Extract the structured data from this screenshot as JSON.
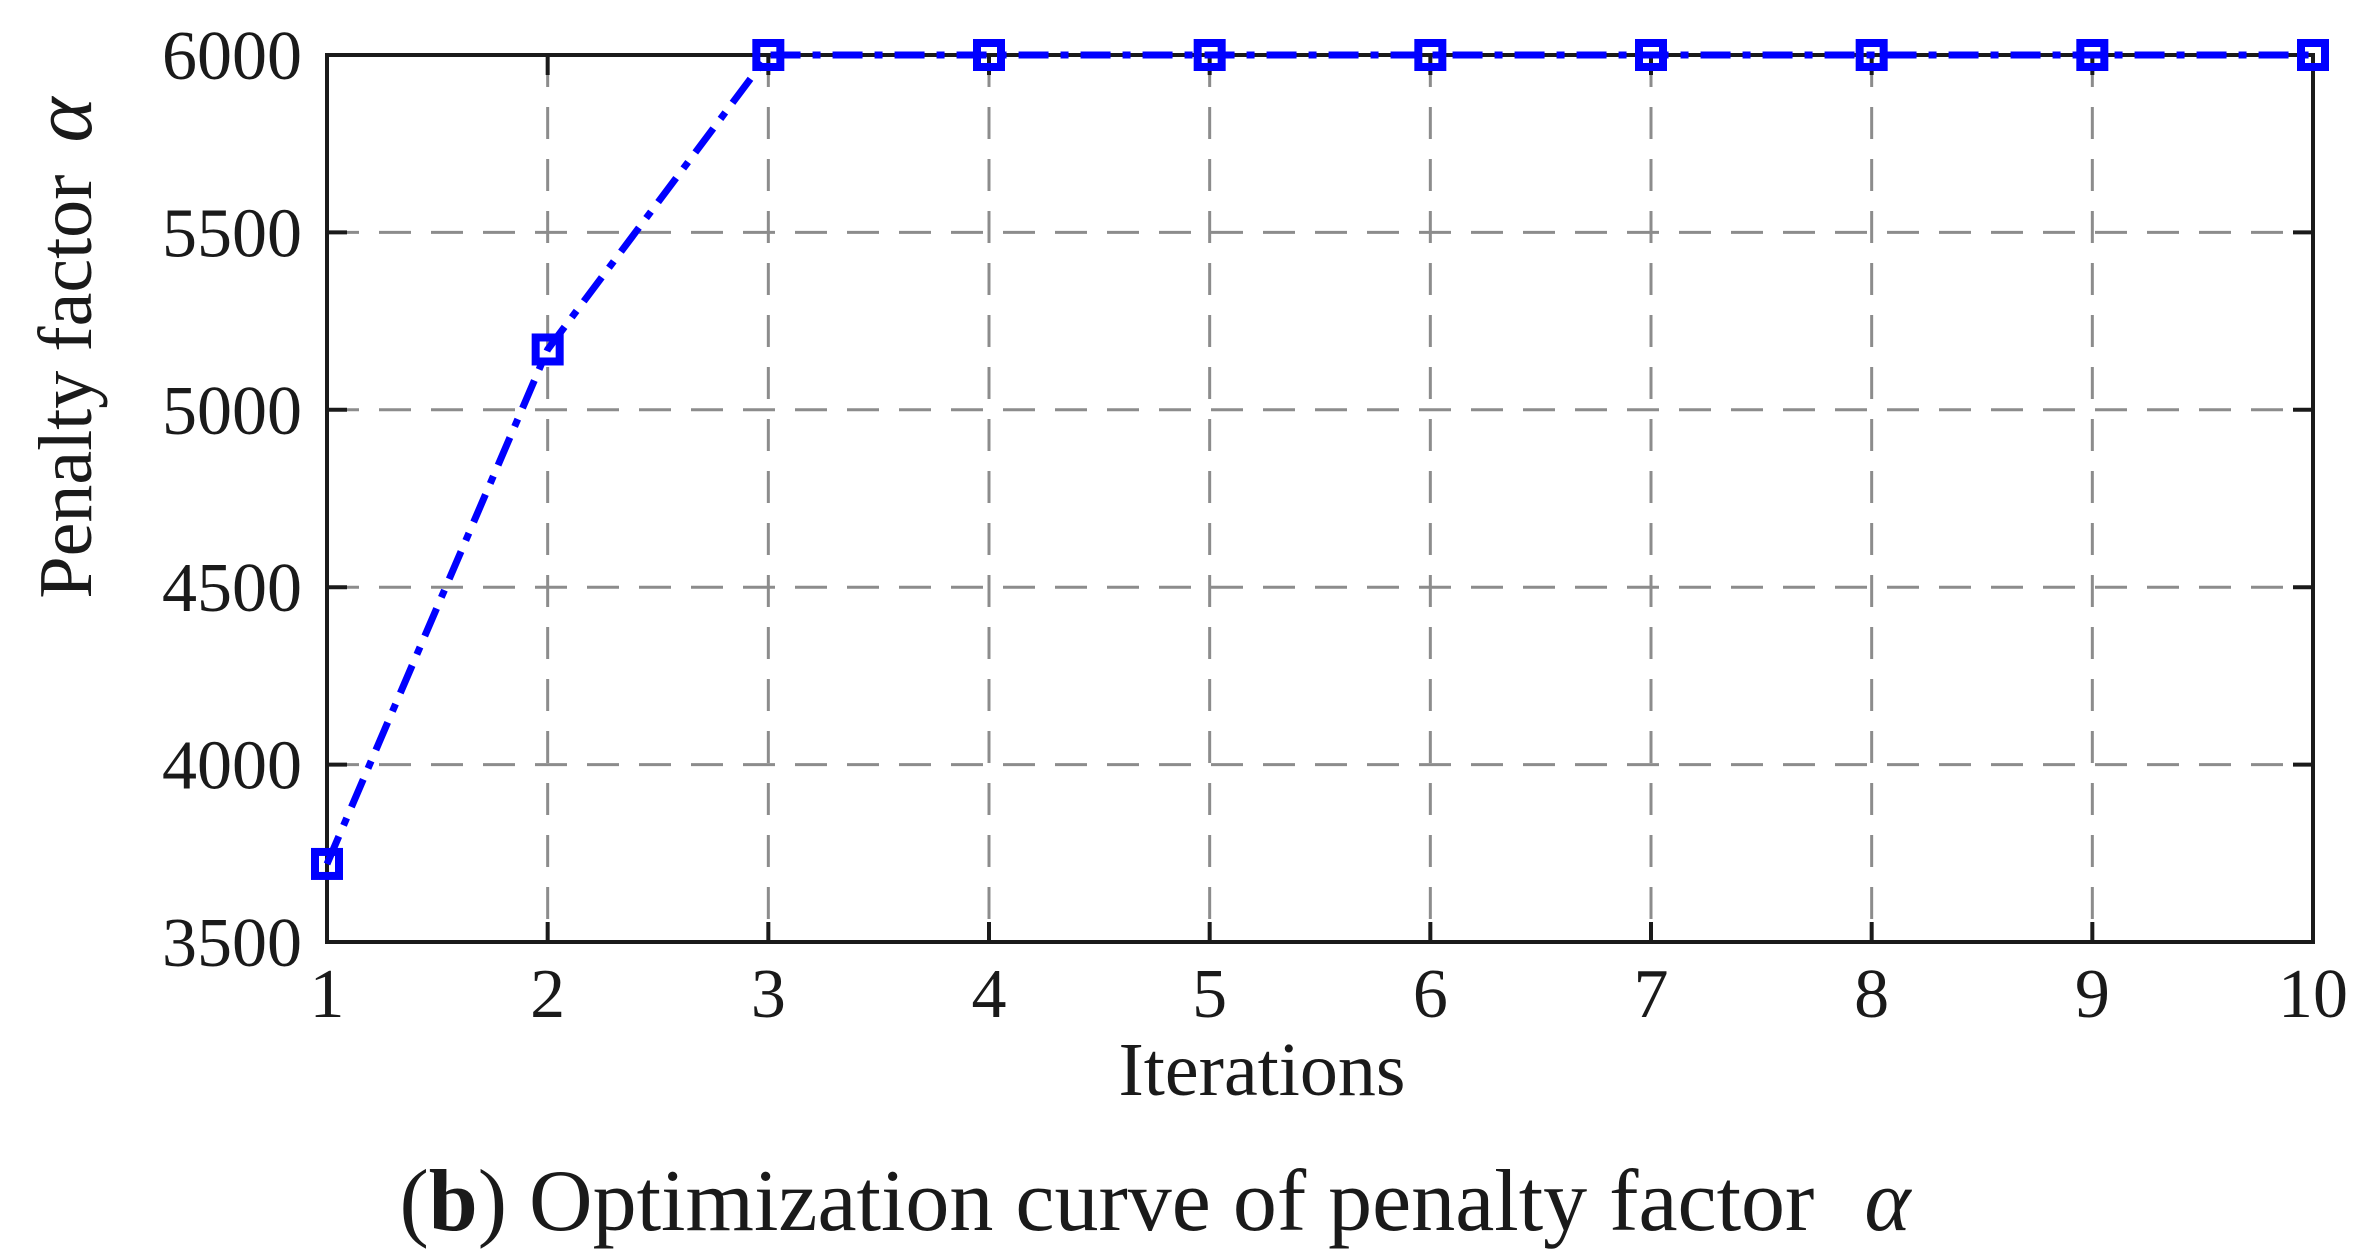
{
  "figure": {
    "caption": {
      "open": "(",
      "bold": "b",
      "rest": ") Optimization curve of penalty factor",
      "symbol": "α"
    }
  },
  "chart_data": {
    "type": "line",
    "title": "",
    "xlabel": "Iterations",
    "ylabel": {
      "text": "Penalty factor",
      "symbol": "α"
    },
    "x": [
      1,
      2,
      3,
      4,
      5,
      6,
      7,
      8,
      9,
      10
    ],
    "series": [
      {
        "name": "penalty factor alpha",
        "values": [
          3720,
          5170,
          6000,
          6000,
          6000,
          6000,
          6000,
          6000,
          6000,
          6000
        ],
        "color": "#0000FF",
        "marker": "open-square",
        "line_style": "dash-dot"
      }
    ],
    "xlim": [
      1,
      10
    ],
    "ylim": [
      3500,
      6000
    ],
    "xticks": [
      1,
      2,
      3,
      4,
      5,
      6,
      7,
      8,
      9,
      10
    ],
    "yticks": [
      3500,
      4000,
      4500,
      5000,
      5500,
      6000
    ],
    "grid": true,
    "grid_style": "dashed",
    "grid_color": "#8c8c8c",
    "axis_color": "#1a1a1a",
    "legend": "none"
  }
}
